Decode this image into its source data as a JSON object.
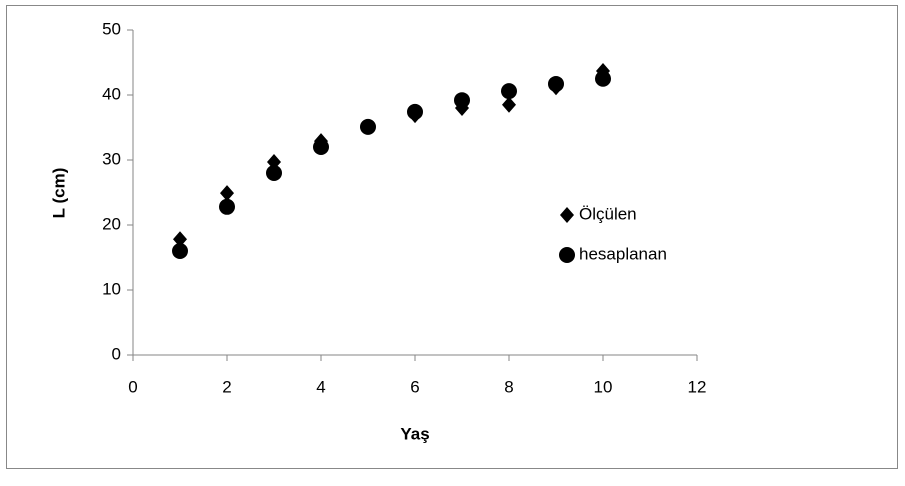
{
  "chart_data": {
    "type": "scatter",
    "x_label": "Yaş",
    "y_label": "L (cm)",
    "series": [
      {
        "name": "Ölçülen",
        "color": "#000000",
        "marker": "diamond",
        "x": [
          1,
          2,
          3,
          4,
          5,
          6,
          7,
          8,
          9,
          10
        ],
        "values": [
          17.8,
          24.9,
          29.7,
          32.9,
          35.1,
          36.9,
          38,
          38.5,
          41.2,
          43.7
        ]
      },
      {
        "name": "hesaplanan",
        "color": "#000000",
        "marker": "circle",
        "x": [
          1,
          2,
          3,
          4,
          5,
          6,
          7,
          8,
          9,
          10
        ],
        "values": [
          16,
          22.8,
          28,
          32,
          35.1,
          37.4,
          39.2,
          40.6,
          41.7,
          42.5
        ]
      }
    ],
    "xlim": [
      0,
      12
    ],
    "xticks": [
      0,
      2,
      4,
      6,
      8,
      10,
      12
    ],
    "ylim": [
      0,
      50
    ],
    "yticks": [
      0,
      10,
      20,
      30,
      40,
      50
    ],
    "grid": false,
    "legend": "right"
  }
}
